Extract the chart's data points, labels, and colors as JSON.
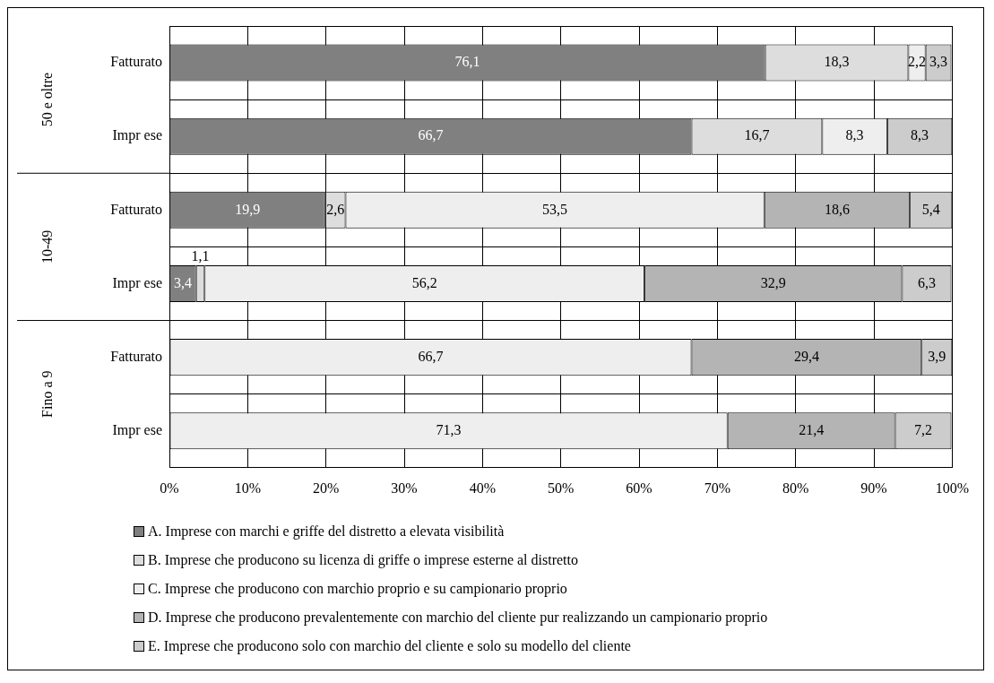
{
  "chart_data": {
    "type": "bar",
    "orientation": "horizontal",
    "stacked": true,
    "categories": [
      "Fatturato",
      "Impr ese",
      "Fatturato",
      "Impr ese",
      "Fatturato",
      "Impr ese"
    ],
    "annotations": [
      "50 e oltre",
      "10-49",
      "Fino a 9"
    ],
    "series": [
      {
        "name": "A. Imprese con marchi e griffe del distretto a elevata visibilità",
        "color": "#808080",
        "values": [
          76.1,
          66.7,
          19.9,
          3.4,
          null,
          null
        ],
        "value_labels": [
          "76,1",
          "66,7",
          "19,9",
          "3,4",
          null,
          null
        ]
      },
      {
        "name": "B. Imprese che producono su licenza di griffe o imprese esterne al distretto",
        "color": "#dddddd",
        "values": [
          18.3,
          16.7,
          2.6,
          1.1,
          null,
          null
        ],
        "value_labels": [
          "18,3",
          "16,7",
          "2,6",
          "1,1",
          null,
          null
        ]
      },
      {
        "name": "C. Imprese che producono con marchio proprio e su campionario proprio",
        "color": "#eeeeee",
        "values": [
          2.2,
          8.3,
          53.5,
          56.2,
          66.7,
          71.3
        ],
        "value_labels": [
          "2,2",
          "8,3",
          "53,5",
          "56,2",
          "66,7",
          "71,3"
        ]
      },
      {
        "name": "D. Imprese che producono prevalentemente con marchio del cliente pur realizzando un campionario proprio",
        "color": "#b4b4b4",
        "values": [
          null,
          null,
          18.6,
          32.9,
          29.4,
          21.4
        ],
        "value_labels": [
          null,
          null,
          "18,6",
          "32,9",
          "29,4",
          "21,4"
        ]
      },
      {
        "name": "E. Imprese che producono solo con marchio del cliente e solo su modello del cliente",
        "color": "#cccccc",
        "values": [
          3.3,
          8.3,
          5.4,
          6.3,
          3.9,
          7.2
        ],
        "value_labels": [
          "3,3",
          "8,3",
          "5,4",
          "6,3",
          "3,9",
          "7,2"
        ]
      }
    ],
    "xlim": [
      0,
      100
    ],
    "xticks": [
      {
        "value": 0,
        "label": "0%"
      },
      {
        "value": 10,
        "label": "10%"
      },
      {
        "value": 20,
        "label": "20%"
      },
      {
        "value": 30,
        "label": "30%"
      },
      {
        "value": 40,
        "label": "40%"
      },
      {
        "value": 50,
        "label": "50%"
      },
      {
        "value": 60,
        "label": "60%"
      },
      {
        "value": 70,
        "label": "70%"
      },
      {
        "value": 80,
        "label": "80%"
      },
      {
        "value": 90,
        "label": "90%"
      },
      {
        "value": 100,
        "label": "100%"
      }
    ],
    "grid": true,
    "legend": "bottom"
  }
}
